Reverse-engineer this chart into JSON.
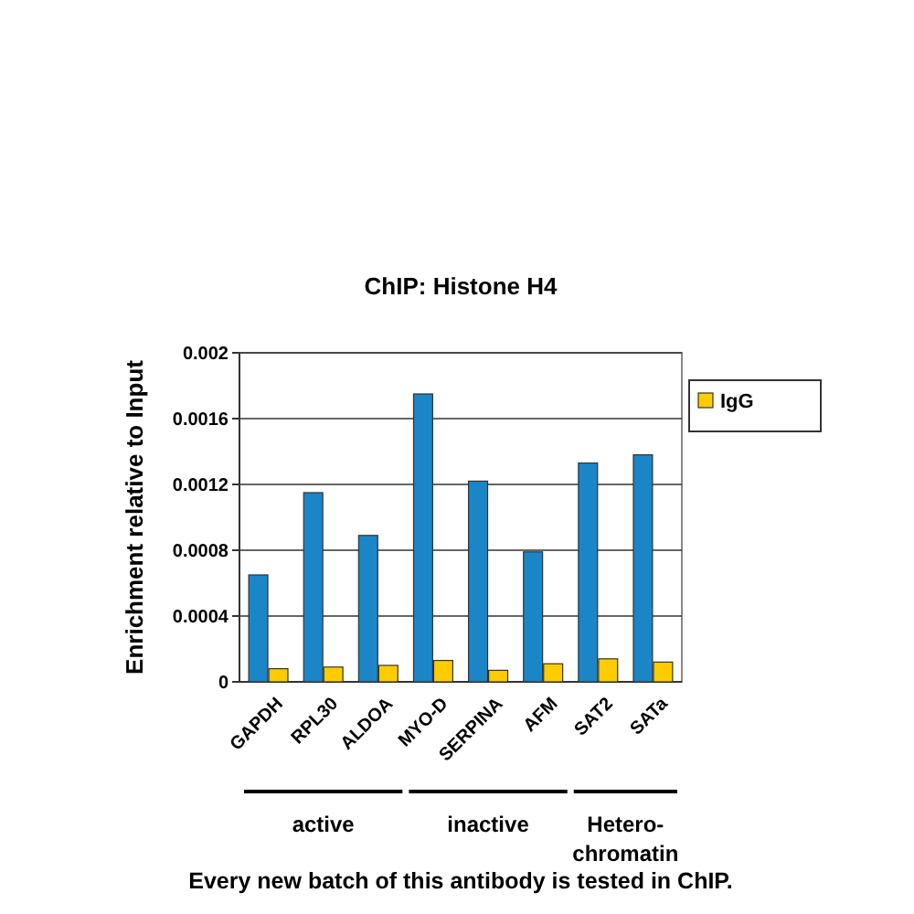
{
  "chart_data": {
    "type": "bar",
    "title": "ChIP: Histone H4",
    "ylabel": "Enrichment relative to Input",
    "categories": [
      "GAPDH",
      "RPL30",
      "ALDOA",
      "MYO-D",
      "SERPINA",
      "AFM",
      "SAT2",
      "SATa"
    ],
    "series": [
      {
        "color": "#1a86c8",
        "values": [
          0.00065,
          0.00115,
          0.00089,
          0.00175,
          0.00122,
          0.00079,
          0.00133,
          0.00138
        ]
      },
      {
        "name": "IgG",
        "color": "#ffcc00",
        "values": [
          8e-05,
          9e-05,
          0.0001,
          0.00013,
          7e-05,
          0.00011,
          0.00014,
          0.00012
        ]
      }
    ],
    "ylim": [
      0,
      0.002
    ],
    "yticks": [
      0,
      0.0004,
      0.0008,
      0.0012,
      0.0016,
      0.002
    ],
    "grid": "y",
    "legend": "right",
    "annotations": [
      "active",
      "inactive",
      "Hetero-chromatin",
      "Every new batch of this antibody is tested in ChIP."
    ]
  }
}
